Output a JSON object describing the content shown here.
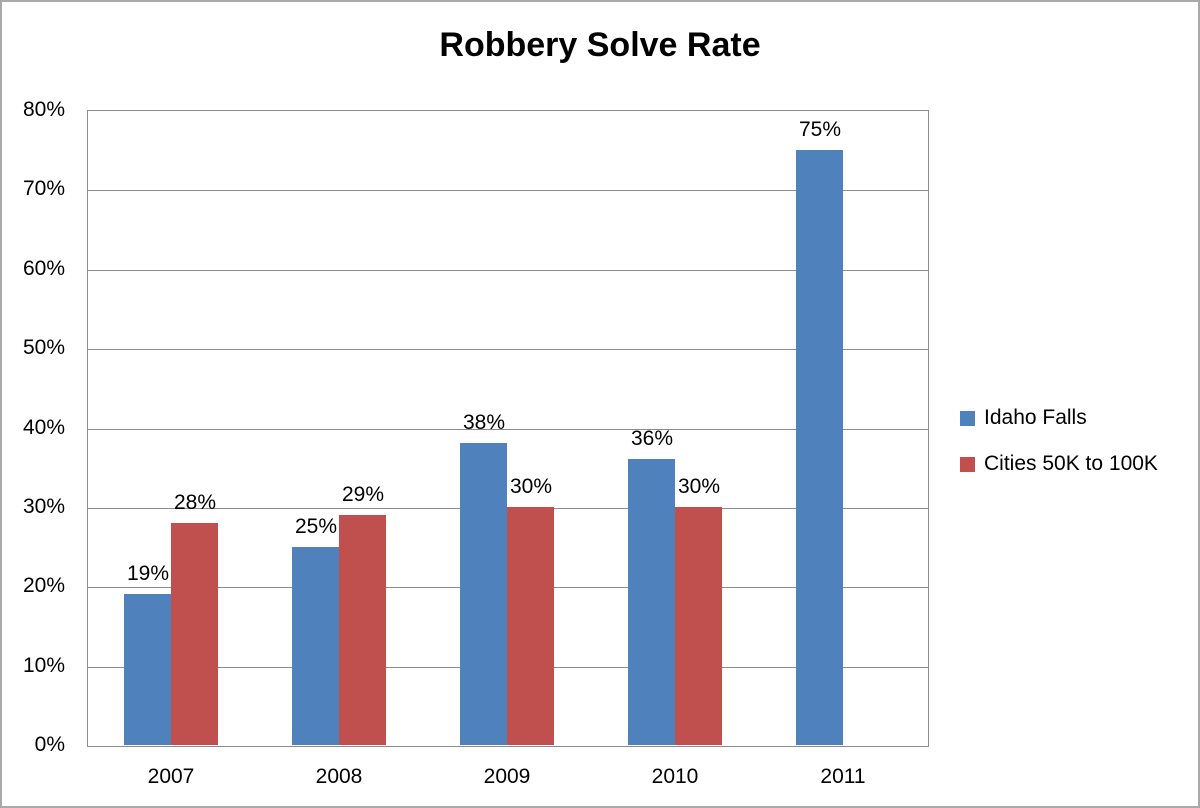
{
  "page": {
    "background_color": "#FFFFFF",
    "border_color": "#A9A9A9"
  },
  "chart_data": {
    "type": "bar",
    "title": "Robbery Solve Rate",
    "categories": [
      "2007",
      "2008",
      "2009",
      "2010",
      "2011"
    ],
    "series": [
      {
        "name": "Idaho Falls",
        "color": "#4F81BD",
        "values": [
          19,
          25,
          38,
          36,
          75
        ],
        "data_labels": [
          "19%",
          "25%",
          "38%",
          "36%",
          "75%"
        ]
      },
      {
        "name": "Cities 50K to 100K",
        "color": "#C0504D",
        "values": [
          28,
          29,
          30,
          30,
          null
        ],
        "data_labels": [
          "28%",
          "29%",
          "30%",
          "30%",
          null
        ]
      }
    ],
    "y_axis": {
      "min": 0,
      "max": 80,
      "step": 10,
      "tick_labels": [
        "0%",
        "10%",
        "20%",
        "30%",
        "40%",
        "50%",
        "60%",
        "70%",
        "80%"
      ],
      "format": "percent"
    },
    "x_axis": {
      "tick_labels": [
        "2007",
        "2008",
        "2009",
        "2010",
        "2011"
      ]
    },
    "grid": true,
    "gridline_color": "#8C8C8C",
    "legend": {
      "position": "right",
      "entries": [
        "Idaho Falls",
        "Cities 50K to 100K"
      ]
    }
  }
}
